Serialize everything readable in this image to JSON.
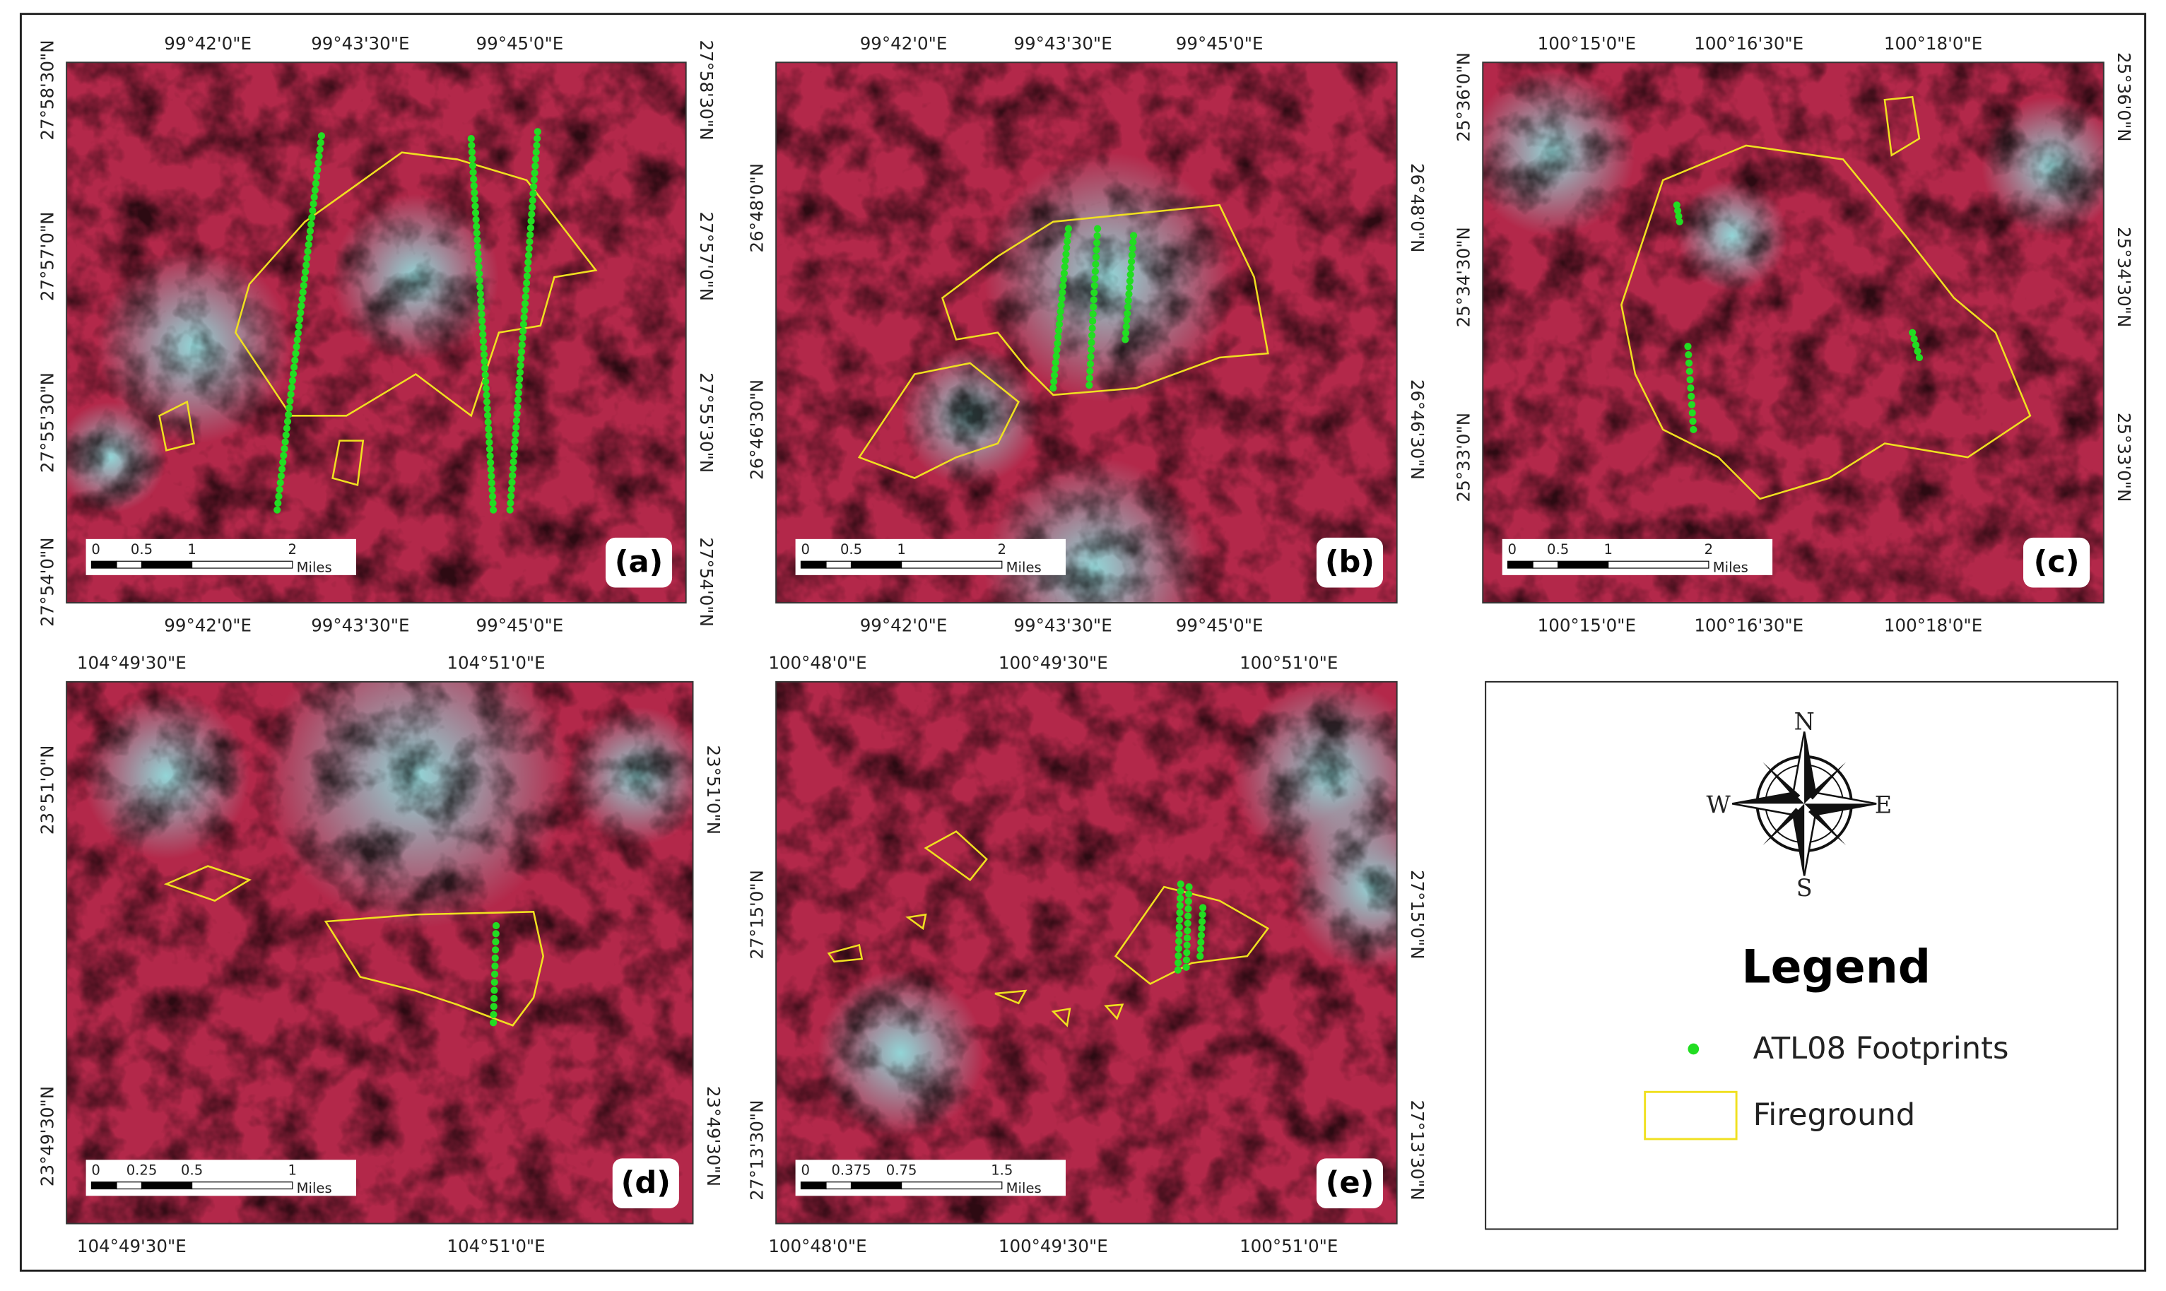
{
  "panels": [
    {
      "label": "(a)",
      "top": [
        "99°42'0\"E",
        "99°43'30\"E",
        "99°45'0\"E"
      ],
      "bottom": [
        "99°42'0\"E",
        "99°43'30\"E",
        "99°45'0\"E"
      ],
      "left": [
        "27°58'30\"N",
        "27°57'0\"N",
        "27°55'30\"N",
        "27°54'0\"N"
      ],
      "right": [
        "27°58'30\"N",
        "27°57'0\"N",
        "27°55'30\"N",
        "27°54'0\"N"
      ],
      "scale": [
        "0",
        "0.5",
        "1",
        "2"
      ],
      "scale_unit": "Miles"
    },
    {
      "label": "(b)",
      "top": [
        "99°42'0\"E",
        "99°43'30\"E",
        "99°45'0\"E"
      ],
      "bottom": [
        "99°42'0\"E",
        "99°43'30\"E",
        "99°45'0\"E"
      ],
      "left": [
        "26°48'0\"N",
        "26°46'30\"N"
      ],
      "right": [
        "26°48'0\"N",
        "26°46'30\"N"
      ],
      "scale": [
        "0",
        "0.5",
        "1",
        "2"
      ],
      "scale_unit": "Miles"
    },
    {
      "label": "(c)",
      "top": [
        "100°15'0\"E",
        "100°16'30\"E",
        "100°18'0\"E"
      ],
      "bottom": [
        "100°15'0\"E",
        "100°16'30\"E",
        "100°18'0\"E"
      ],
      "left": [
        "25°36'0\"N",
        "25°34'30\"N",
        "25°33'0\"N"
      ],
      "right": [
        "25°36'0\"N",
        "25°34'30\"N",
        "25°33'0\"N"
      ],
      "scale": [
        "0",
        "0.5",
        "1",
        "2"
      ],
      "scale_unit": "Miles"
    },
    {
      "label": "(d)",
      "top": [
        "104°49'30\"E",
        "104°51'0\"E"
      ],
      "bottom": [
        "104°49'30\"E",
        "104°51'0\"E"
      ],
      "left": [
        "23°51'0\"N",
        "23°49'30\"N"
      ],
      "right": [
        "23°51'0\"N",
        "23°49'30\"N"
      ],
      "scale": [
        "0",
        "0.25",
        "0.5",
        "1"
      ],
      "scale_unit": "Miles"
    },
    {
      "label": "(e)",
      "top": [
        "100°48'0\"E",
        "100°49'30\"E",
        "100°51'0\"E"
      ],
      "bottom": [
        "100°48'0\"E",
        "100°49'30\"E",
        "100°51'0\"E"
      ],
      "left": [
        "27°15'0\"N",
        "27°13'30\"N"
      ],
      "right": [
        "27°15'0\"N",
        "27°13'30\"N"
      ],
      "scale": [
        "0",
        "0.375",
        "0.75",
        "1.5"
      ],
      "scale_unit": "Miles"
    }
  ],
  "legend": {
    "title": "Legend",
    "compass": {
      "n": "N",
      "s": "S",
      "e": "E",
      "w": "W"
    },
    "items": [
      "ATL08 Footprints",
      "Fireground"
    ]
  }
}
